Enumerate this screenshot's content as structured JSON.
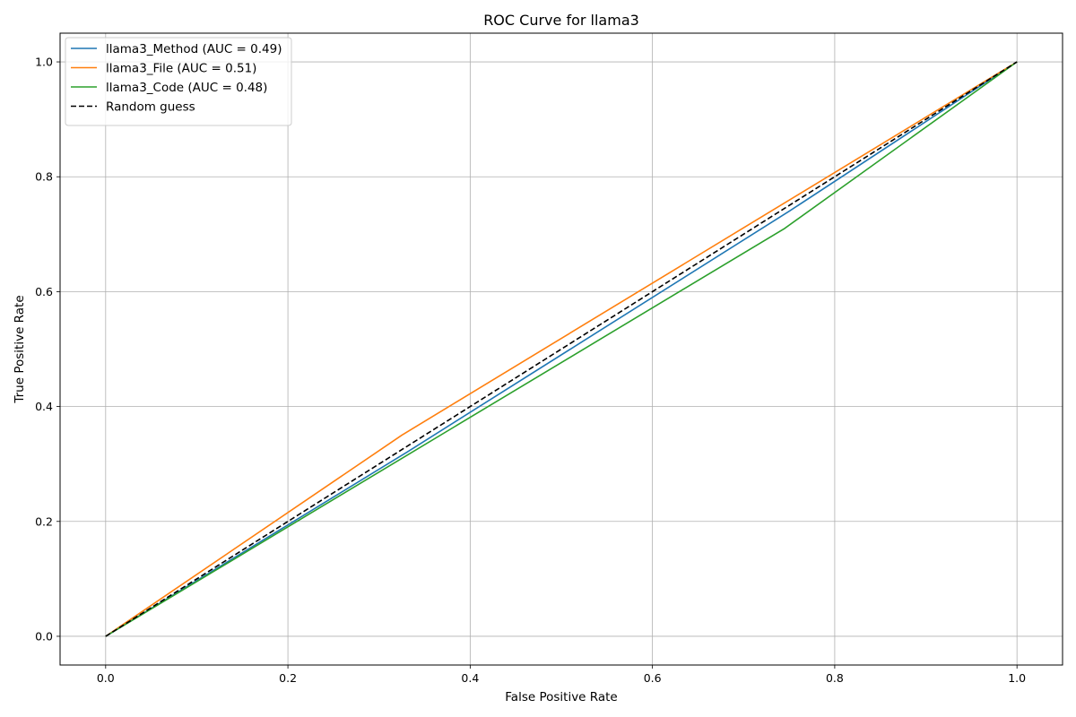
{
  "chart_data": {
    "type": "line",
    "title": "ROC Curve for llama3",
    "xlabel": "False Positive Rate",
    "ylabel": "True Positive Rate",
    "xlim": [
      -0.05,
      1.05
    ],
    "ylim": [
      -0.05,
      1.05
    ],
    "xticks": [
      "0.0",
      "0.2",
      "0.4",
      "0.6",
      "0.8",
      "1.0"
    ],
    "yticks": [
      "0.0",
      "0.2",
      "0.4",
      "0.6",
      "0.8",
      "1.0"
    ],
    "grid": true,
    "legend_position": "top-left",
    "series": [
      {
        "name": "llama3_Method (AUC = 0.49)",
        "color": "#1f77b4",
        "dash": "solid",
        "x": [
          0.0,
          0.33,
          0.75,
          1.0
        ],
        "y": [
          0.0,
          0.32,
          0.74,
          1.0
        ]
      },
      {
        "name": "llama3_File (AUC = 0.51)",
        "color": "#ff7f0e",
        "dash": "solid",
        "x": [
          0.0,
          0.325,
          1.0
        ],
        "y": [
          0.0,
          0.35,
          1.0
        ]
      },
      {
        "name": "llama3_Code (AUC = 0.48)",
        "color": "#2ca02c",
        "dash": "solid",
        "x": [
          0.0,
          0.745,
          1.0
        ],
        "y": [
          0.0,
          0.71,
          1.0
        ]
      },
      {
        "name": "Random guess",
        "color": "#000000",
        "dash": "dashed",
        "x": [
          0.0,
          1.0
        ],
        "y": [
          0.0,
          1.0
        ]
      }
    ]
  }
}
